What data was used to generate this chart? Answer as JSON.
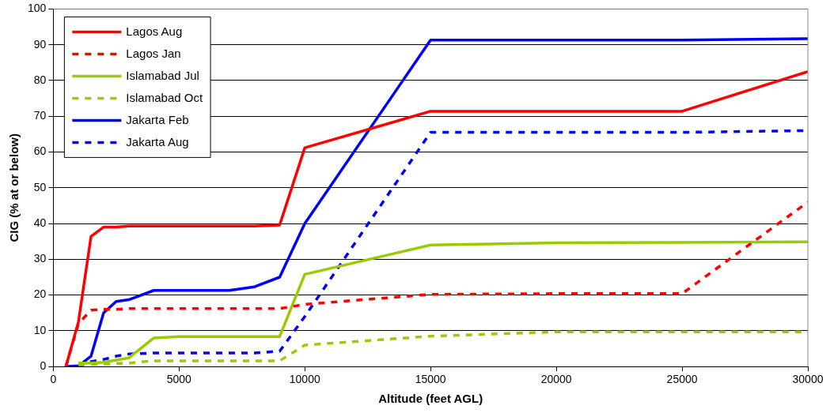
{
  "chart_data": {
    "type": "line",
    "xlabel": "Altitude (feet AGL)",
    "ylabel": "CIG (% at or below)",
    "xlim": [
      0,
      30000
    ],
    "xticks": [
      0,
      5000,
      10000,
      15000,
      20000,
      25000,
      30000
    ],
    "ylim": [
      0,
      100
    ],
    "yticks": [
      0,
      10,
      20,
      30,
      40,
      50,
      60,
      70,
      80,
      90,
      100
    ],
    "grid": "y",
    "legend": "top left",
    "marker": "none",
    "series": [
      {
        "name": "Lagos Aug",
        "color": "#ff0000",
        "line_style": "solid",
        "x": [
          500,
          1000,
          1500,
          2000,
          2500,
          3000,
          4000,
          5000,
          6000,
          7000,
          8000,
          9000,
          10000,
          15000,
          20000,
          25000,
          30000
        ],
        "values": [
          0,
          12.5,
          36.4,
          39,
          39,
          39.3,
          39.3,
          39.3,
          39.3,
          39.3,
          39.3,
          39.6,
          61.2,
          71.4,
          71.4,
          71.4,
          82.5
        ]
      },
      {
        "name": "Lagos Jan",
        "color": "#ff0000",
        "line_style": "dashed",
        "x": [
          500,
          1000,
          1500,
          2000,
          2500,
          3000,
          4000,
          5000,
          6000,
          7000,
          8000,
          9000,
          10000,
          15000,
          20000,
          25000,
          30000
        ],
        "values": [
          0,
          12,
          15.8,
          16,
          16,
          16.2,
          16.2,
          16.2,
          16.2,
          16.2,
          16.2,
          16.2,
          17.4,
          20.2,
          20.4,
          20.4,
          46
        ]
      },
      {
        "name": "Islamabad Jul",
        "color": "#99cc00",
        "line_style": "solid",
        "x": [
          1000,
          1500,
          2000,
          3000,
          4000,
          5000,
          6000,
          7000,
          8000,
          9000,
          10000,
          15000,
          20000,
          25000,
          30000
        ],
        "values": [
          1,
          1,
          1.2,
          2.4,
          8,
          8.4,
          8.4,
          8.4,
          8.4,
          8.4,
          25.8,
          34,
          34.6,
          34.7,
          34.9
        ]
      },
      {
        "name": "Islamabad Oct",
        "color": "#99cc00",
        "line_style": "dashed",
        "x": [
          1000,
          2000,
          3000,
          4000,
          5000,
          6000,
          7000,
          8000,
          9000,
          10000,
          15000,
          20000,
          25000,
          30000
        ],
        "values": [
          0.5,
          0.7,
          1,
          1.6,
          1.6,
          1.6,
          1.6,
          1.6,
          1.6,
          6,
          8.5,
          9.7,
          9.7,
          9.7
        ]
      },
      {
        "name": "Jakarta Feb",
        "color": "#0000ff",
        "line_style": "solid",
        "x": [
          500,
          1000,
          1500,
          2000,
          2500,
          3000,
          4000,
          5000,
          6000,
          7000,
          8000,
          9000,
          10000,
          15000,
          20000,
          25000,
          30000
        ],
        "values": [
          0,
          0.2,
          2.9,
          15,
          18.2,
          18.7,
          21.3,
          21.3,
          21.3,
          21.3,
          22.3,
          25,
          40,
          91.3,
          91.3,
          91.3,
          91.7
        ]
      },
      {
        "name": "Jakarta Aug",
        "color": "#0000ff",
        "line_style": "dashed",
        "x": [
          500,
          1000,
          1500,
          2000,
          2500,
          3000,
          4000,
          5000,
          6000,
          7000,
          8000,
          9000,
          10000,
          15000,
          20000,
          25000,
          30000
        ],
        "values": [
          0,
          0,
          1.4,
          2,
          2.9,
          3.5,
          3.8,
          3.8,
          3.8,
          3.8,
          3.8,
          4.3,
          14,
          65.5,
          65.5,
          65.5,
          66
        ]
      }
    ]
  }
}
